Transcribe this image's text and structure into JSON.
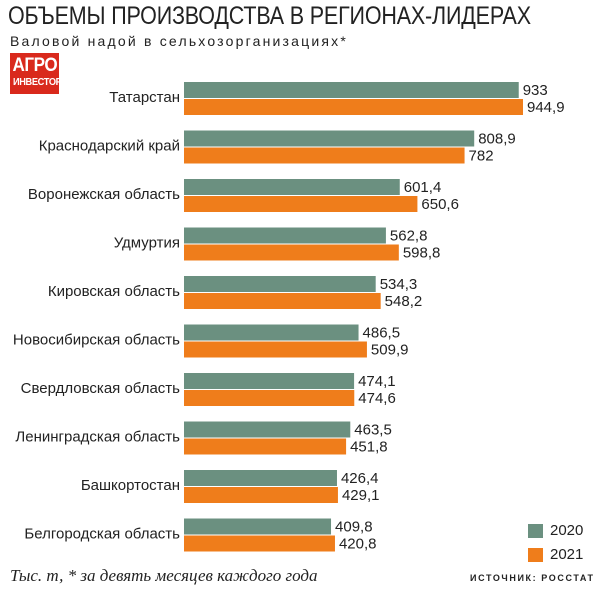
{
  "header": {
    "title": "ОБЪЕМЫ ПРОИЗВОДСТВА В РЕГИОНАХ-ЛИДЕРАХ",
    "subtitle": "Валовой надой в сельхозорганизациях*"
  },
  "logo": {
    "line1": "АГРО",
    "line2": "ИНВЕСТОР",
    "color": "#d9291c"
  },
  "chart_data": {
    "type": "bar",
    "orientation": "horizontal",
    "categories": [
      "Татарстан",
      "Краснодарский край",
      "Воронежская область",
      "Удмуртия",
      "Кировская область",
      "Новосибирская область",
      "Свердловская область",
      "Ленинградская область",
      "Башкортостан",
      "Белгородская область"
    ],
    "series": [
      {
        "name": "2020",
        "color": "#6b9080",
        "values": [
          933,
          808.9,
          601.4,
          562.8,
          534.3,
          486.5,
          474.1,
          463.5,
          426.4,
          409.8
        ],
        "labels": [
          "933",
          "808,9",
          "601,4",
          "562,8",
          "534,3",
          "486,5",
          "474,1",
          "463,5",
          "426,4",
          "409,8"
        ]
      },
      {
        "name": "2021",
        "color": "#ef7d1b",
        "values": [
          944.9,
          782,
          650.6,
          598.8,
          548.2,
          509.9,
          474.6,
          451.8,
          429.1,
          420.8
        ],
        "labels": [
          "944,9",
          "782",
          "650,6",
          "598,8",
          "548,2",
          "509,9",
          "474,6",
          "451,8",
          "429,1",
          "420,8"
        ]
      }
    ],
    "legend_position": "bottom-right",
    "grid": false
  },
  "footnote": "Тыс. т, * за девять месяцев каждого года",
  "source": "ИСТОЧНИК: РОССТАТ"
}
